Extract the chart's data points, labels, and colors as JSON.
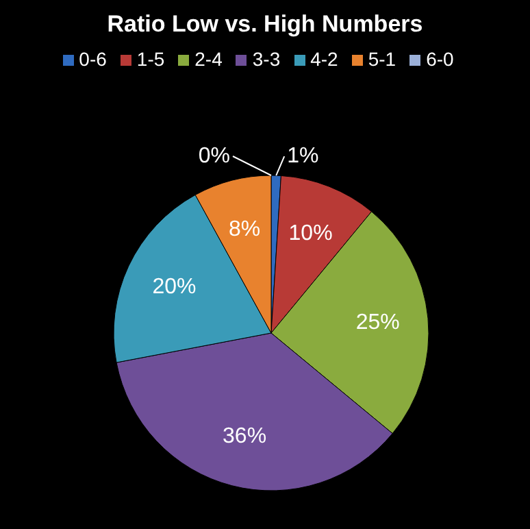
{
  "chart_data": {
    "type": "pie",
    "title": "Ratio Low vs. High Numbers",
    "categories": [
      "0-6",
      "1-5",
      "2-4",
      "3-3",
      "4-2",
      "5-1",
      "6-0"
    ],
    "values": [
      1,
      10,
      25,
      36,
      20,
      8,
      0
    ],
    "value_labels": [
      "1%",
      "10%",
      "25%",
      "36%",
      "20%",
      "8%",
      "0%"
    ],
    "colors": [
      "#2f6bc0",
      "#b83a36",
      "#8aab3e",
      "#6e4f98",
      "#3a9bb8",
      "#e8822e",
      "#9bb0d8"
    ],
    "legend": "top"
  }
}
